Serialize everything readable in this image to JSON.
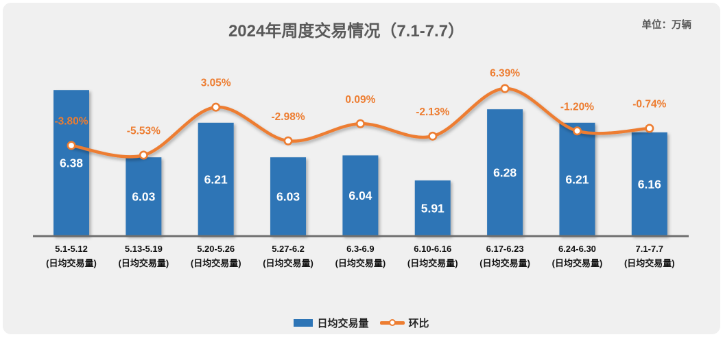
{
  "header": {
    "title": "2024年周度交易情况（7.1-7.7）",
    "unit_label": "单位：万辆"
  },
  "legend": {
    "items": [
      {
        "label": "日均交易量",
        "marker": "bar-swatch",
        "color": "#2E75B6"
      },
      {
        "label": "环比",
        "marker": "line-swatch",
        "color": "#ED7D31"
      }
    ],
    "position": "bottom-center"
  },
  "chart_data": {
    "type": "bar",
    "combo": "bar+line",
    "title": "2024年周度交易情况（7.1-7.7）",
    "unit": "万辆",
    "categories": [
      "5.1-5.12",
      "5.13-5.19",
      "5.20-5.26",
      "5.27-6.2",
      "6.3-6.9",
      "6.10-6.16",
      "6.17-6.23",
      "6.24-6.30",
      "7.1-7.7"
    ],
    "category_sublabel": "(日均交易量)",
    "series": [
      {
        "name": "日均交易量",
        "type": "bar",
        "color": "#2E75B6",
        "values": [
          6.38,
          6.03,
          6.21,
          6.03,
          6.04,
          5.91,
          6.28,
          6.21,
          6.16
        ],
        "data_labels": [
          "6.38",
          "6.03",
          "6.21",
          "6.03",
          "6.04",
          "5.91",
          "6.28",
          "6.21",
          "6.16"
        ],
        "data_label_color": "#FFFFFF",
        "data_label_position": "inside-center"
      },
      {
        "name": "环比",
        "type": "line",
        "color": "#ED7D31",
        "values": [
          -3.8,
          -5.53,
          3.05,
          -2.98,
          0.09,
          -2.13,
          6.39,
          -1.2,
          -0.74
        ],
        "data_labels": [
          "-3.80%",
          "-5.53%",
          "3.05%",
          "-2.98%",
          "0.09%",
          "-2.13%",
          "6.39%",
          "-1.20%",
          "-0.74%"
        ],
        "data_label_color": "#ED7D31",
        "data_label_position": "above",
        "marker": "circle-white-fill-orange-ring",
        "smooth": true
      }
    ],
    "axes": {
      "x_axis_line_color": "#6F6F6F",
      "x_tick_label_color": "#111111",
      "bar_axis": {
        "min": 5.62,
        "visible": false
      },
      "pct_axis": {
        "visible": false
      }
    },
    "grid": false,
    "legend_position": "bottom",
    "background": "#F0F0F0"
  }
}
